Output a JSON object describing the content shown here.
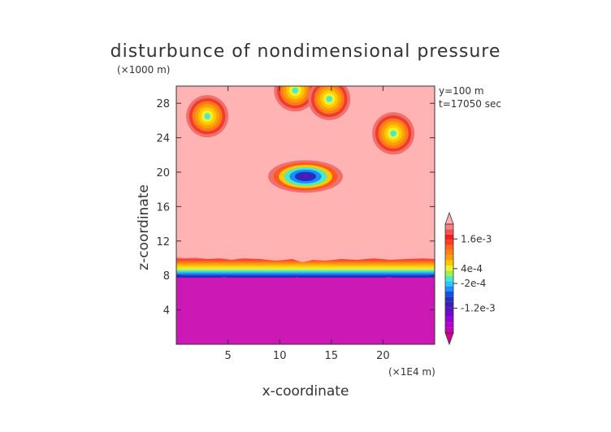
{
  "chart_data": {
    "type": "heatmap",
    "title": "disturbunce of nondimensional pressure",
    "xlabel": "x-coordinate",
    "ylabel": "z-coordinate",
    "x_unit": "(×1E4 m)",
    "y_unit": "(×1000 m)",
    "annotations": [
      "y=100 m",
      "t=17050 sec"
    ],
    "xlim": [
      0,
      25
    ],
    "ylim": [
      0,
      30
    ],
    "x_ticks": [
      5,
      10,
      15,
      20
    ],
    "y_ticks": [
      4,
      8,
      12,
      16,
      20,
      24,
      28
    ],
    "colorbar": {
      "levels": [
        0.0016,
        0.0004,
        -0.0002,
        -0.0012
      ],
      "tick_labels": [
        "1.6e-3",
        "4e-4",
        "-2e-4",
        "-1.2e-3"
      ],
      "colors": [
        "#d60090",
        "#c800b4",
        "#b400c8",
        "#9b00d2",
        "#7a00d2",
        "#5a14be",
        "#3c1eb4",
        "#1e32be",
        "#1450e6",
        "#1e8cff",
        "#28c8ff",
        "#46ebc8",
        "#a0f046",
        "#f0f032",
        "#ffc800",
        "#ffa000",
        "#ff8214",
        "#ff641e",
        "#ff3c1e",
        "#f01e1e",
        "#f55050",
        "#fa8080",
        "#ffb0b0"
      ]
    },
    "background_value_color": "#ffb3b3",
    "lower_layer": {
      "z_range": [
        0,
        8
      ],
      "color": "#cc18b4"
    },
    "transition_layer": {
      "z_range": [
        7.8,
        10
      ]
    },
    "anomalies": [
      {
        "x": 3,
        "z": 26.5,
        "sign": "positive"
      },
      {
        "x": 11.5,
        "z": 29.5,
        "sign": "positive"
      },
      {
        "x": 14.8,
        "z": 28.5,
        "sign": "positive"
      },
      {
        "x": 21,
        "z": 24.5,
        "sign": "positive"
      },
      {
        "x": 12.5,
        "z": 19.5,
        "sign": "negative"
      }
    ]
  }
}
